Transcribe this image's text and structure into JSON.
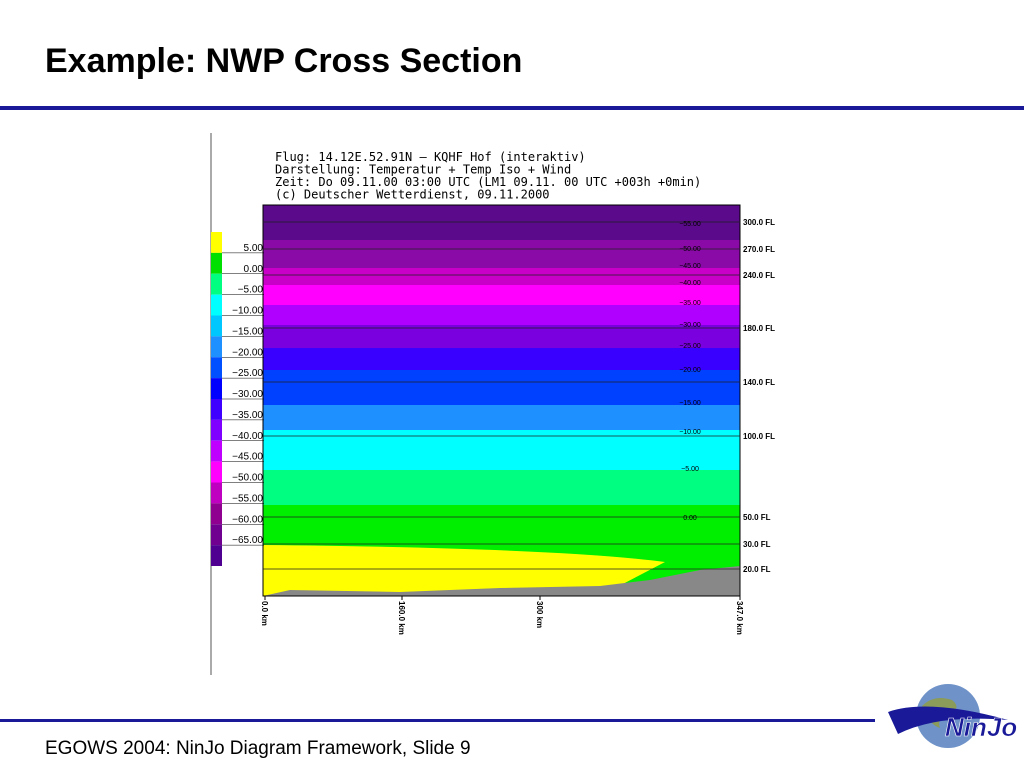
{
  "slide": {
    "title": "Example: NWP Cross Section",
    "footer": "EGOWS 2004: NinJo Diagram Framework, Slide 9",
    "logo": "NinJo",
    "figure": {
      "header": [
        "Flug: 14.12E.52.91N – KQHF Hof (interaktiv)",
        "Darstellung: Temperatur + Temp Iso + Wind",
        "Zeit: Do 09.11.00 03:00 UTC (LM1 09.11. 00 UTC +003h +0min)",
        "(c) Deutscher Wetterdienst, 09.11.2000"
      ],
      "legend_labels": [
        "5.00",
        "0.00",
        "−5.00",
        "−10.00",
        "−15.00",
        "−20.00",
        "−25.00",
        "−30.00",
        "−35.00",
        "−40.00",
        "−45.00",
        "−50.00",
        "−55.00",
        "−60.00",
        "−65.00"
      ],
      "flight_levels": [
        "300.0 FL",
        "270.0 FL",
        "240.0 FL",
        "180.0 FL",
        "140.0 FL",
        "100.0 FL",
        "50.0 FL",
        "30.0 FL",
        "20.0 FL"
      ],
      "distance_labels": [
        "0.0 km",
        "160.0 km",
        "300 km",
        "347.0 km"
      ],
      "isotherm_labels": [
        "−55.00",
        "−50.00",
        "−45.00",
        "−40.00",
        "−35.00",
        "−30.00",
        "−25.00",
        "−20.00",
        "−15.00",
        "−10.00",
        "−5.00",
        "0.00"
      ]
    }
  }
}
